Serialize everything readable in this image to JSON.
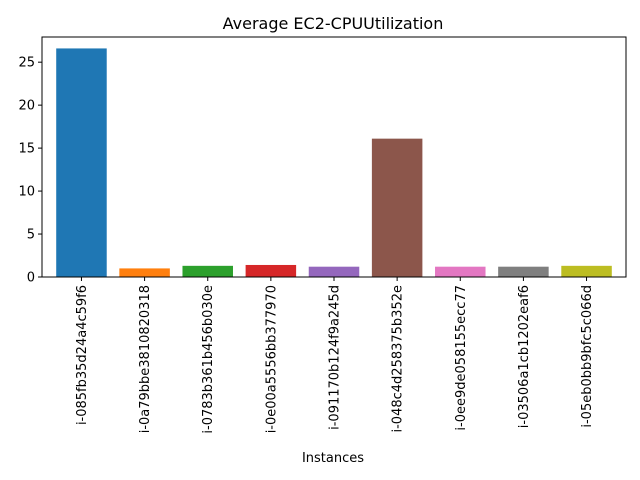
{
  "chart_data": {
    "type": "bar",
    "title": "Average EC2-CPUUtilization",
    "xlabel": "Instances",
    "ylabel": "",
    "categories": [
      "i-085fb35d24a4c59f6",
      "i-0a79bbe3810820318",
      "i-0783b361b456b030e",
      "i-0e00a5556bb377970",
      "i-091170b124f9a245d",
      "i-048c4d258375b352e",
      "i-0ee9de058155ecc77",
      "i-03506a1cb1202eaf6",
      "i-05eb0bb9bfc5c066d"
    ],
    "values": [
      26.6,
      1.0,
      1.3,
      1.4,
      1.2,
      16.1,
      1.2,
      1.2,
      1.3
    ],
    "colors": [
      "#1f77b4",
      "#ff7f0e",
      "#2ca02c",
      "#d62728",
      "#9467bd",
      "#8c564b",
      "#e377c2",
      "#7f7f7f",
      "#bcbd22"
    ],
    "ylim": [
      0,
      27.93
    ],
    "yticks": [
      0,
      5,
      10,
      15,
      20,
      25
    ],
    "grid": false,
    "legend": "none"
  }
}
